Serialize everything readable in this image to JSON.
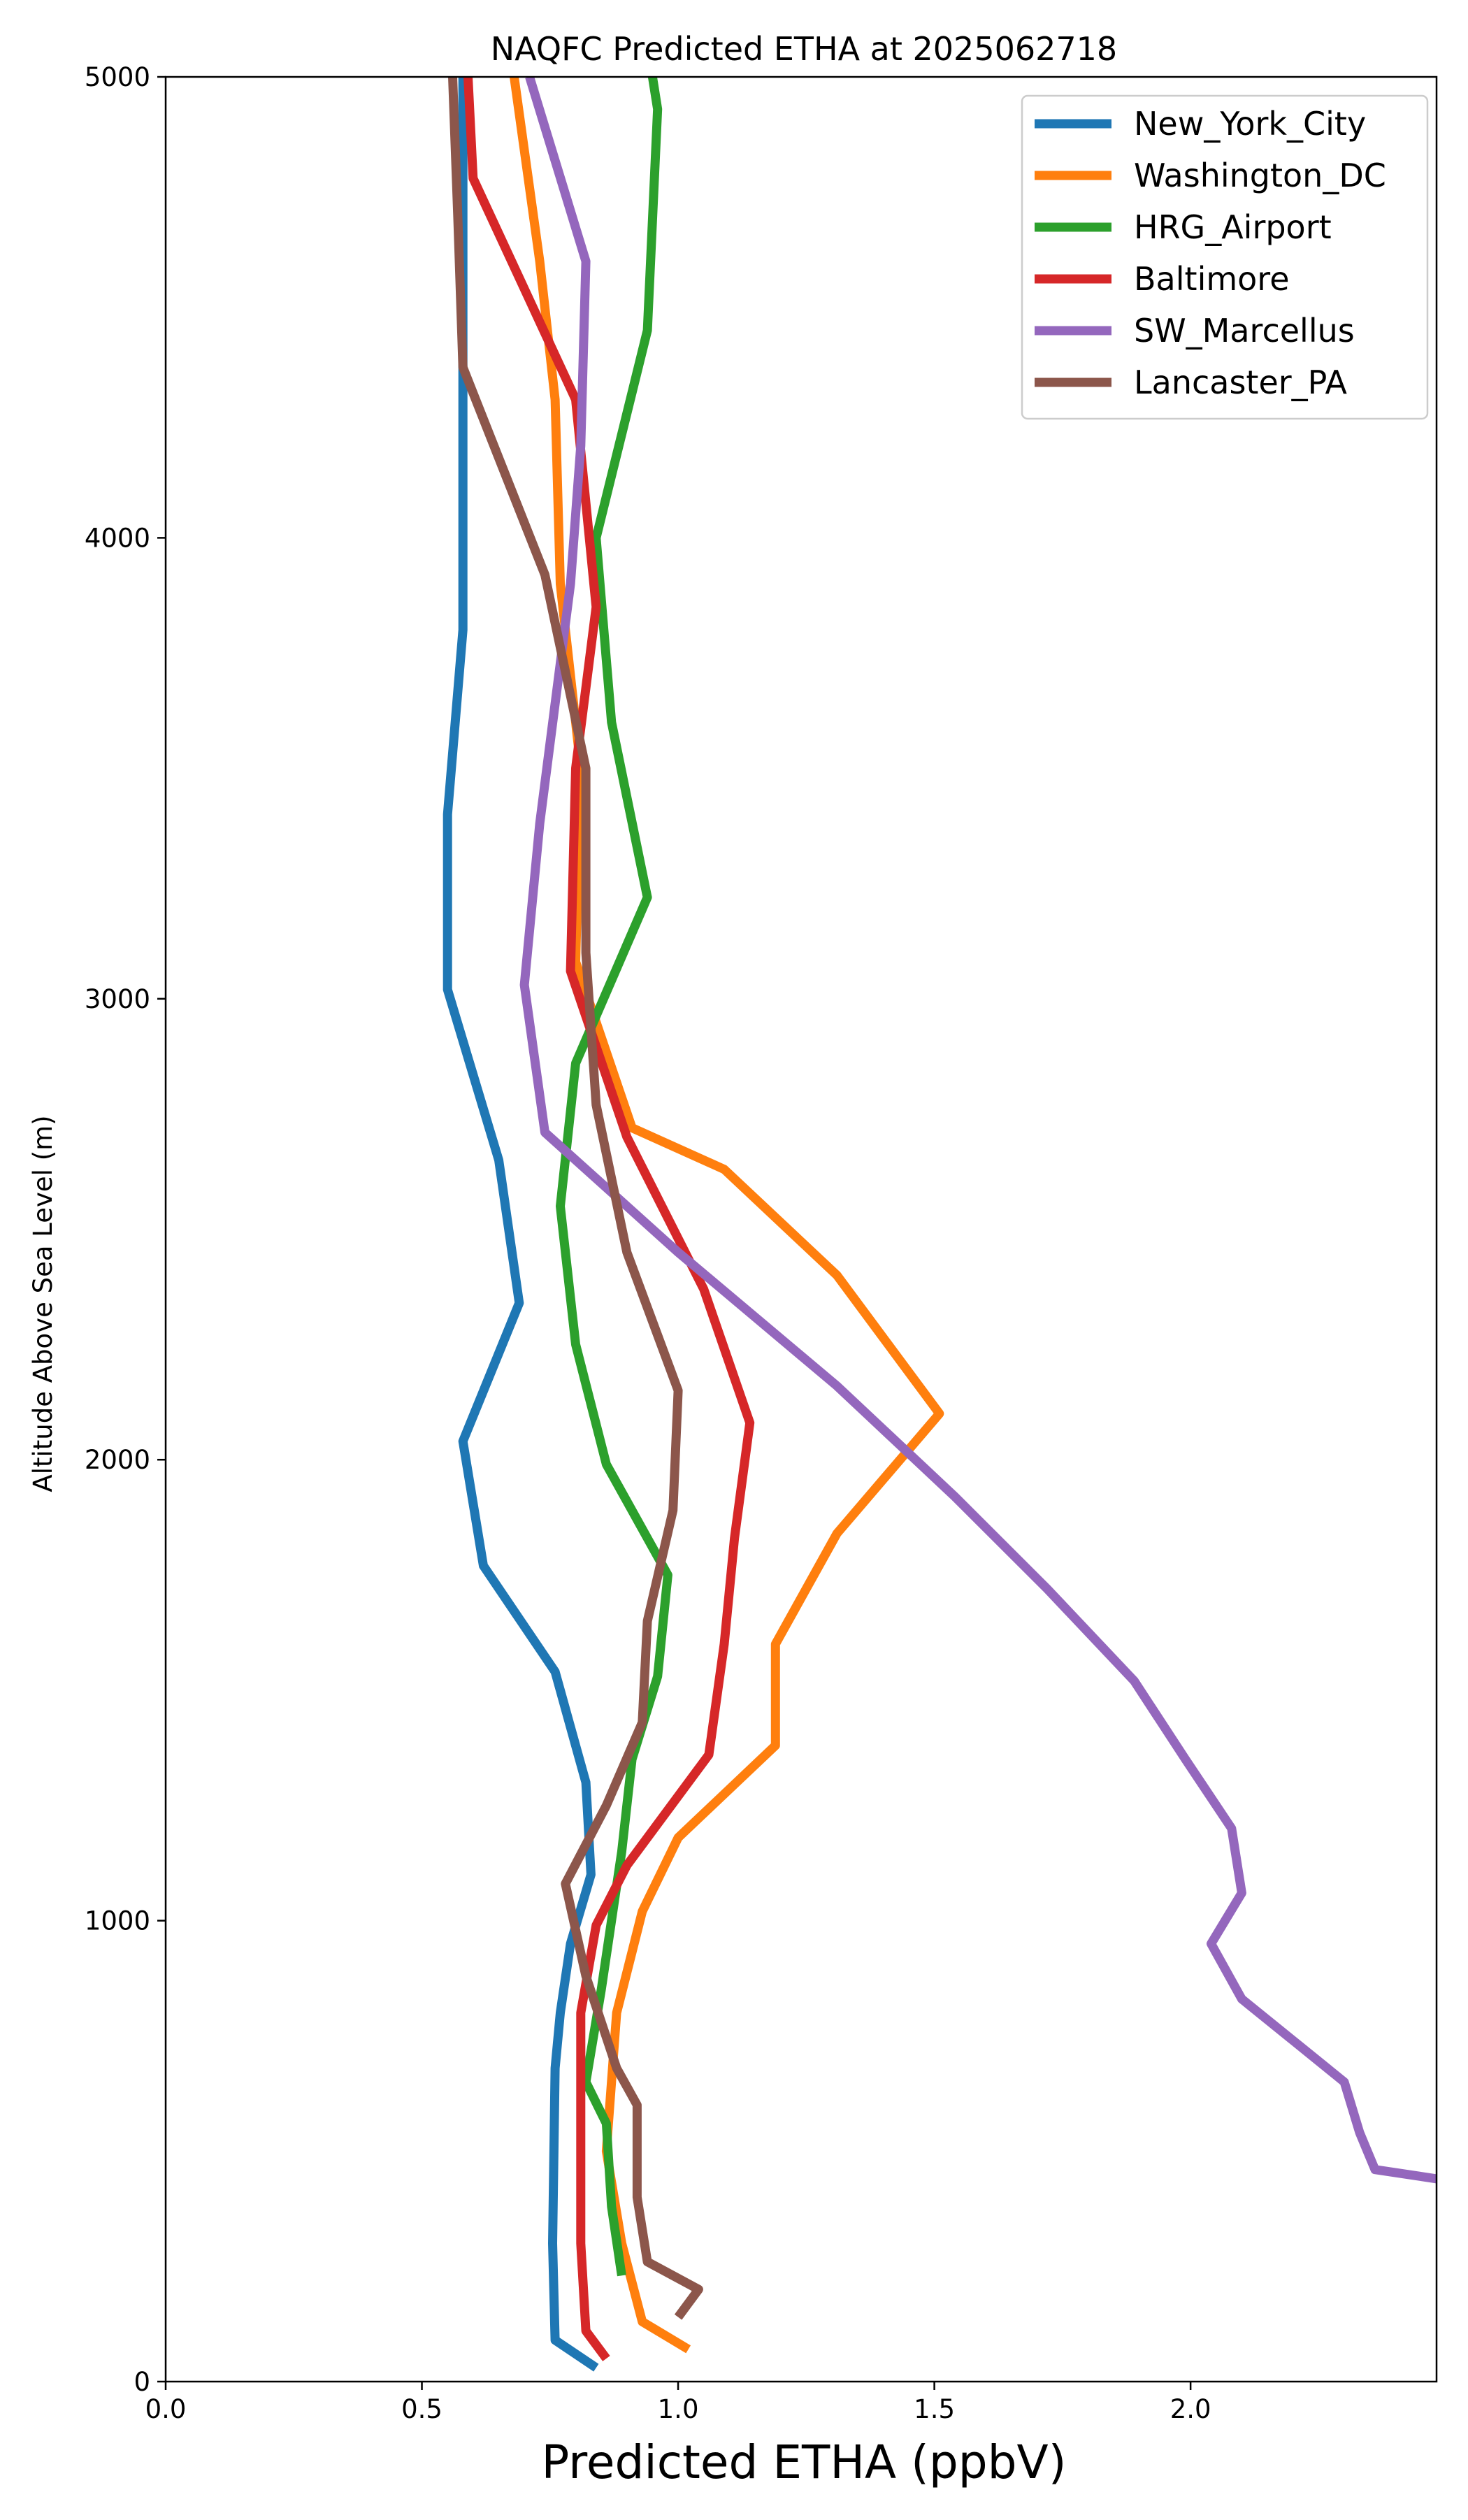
{
  "chart_data": {
    "type": "line",
    "title": "NAQFC Predicted ETHA at 2025062718",
    "xlabel": "Predicted ETHA (ppbV)",
    "ylabel": "Altitude Above Sea Level (m)",
    "xlim": [
      0,
      2.48
    ],
    "ylim": [
      0,
      5000
    ],
    "xticks": [
      0.0,
      0.5,
      1.0,
      1.5,
      2.0
    ],
    "xtick_labels": [
      "0.0",
      "0.5",
      "1.0",
      "1.5",
      "2.0"
    ],
    "yticks": [
      0,
      1000,
      2000,
      3000,
      4000,
      5000
    ],
    "ytick_labels": [
      "0",
      "1000",
      "2000",
      "3000",
      "4000",
      "5000"
    ],
    "grid": false,
    "legend_position": "top-right",
    "series": [
      {
        "name": "New_York_City",
        "color": "#1f77b4",
        "points": [
          [
            0.84,
            30
          ],
          [
            0.76,
            90
          ],
          [
            0.755,
            300
          ],
          [
            0.76,
            680
          ],
          [
            0.77,
            800
          ],
          [
            0.79,
            950
          ],
          [
            0.83,
            1100
          ],
          [
            0.82,
            1300
          ],
          [
            0.76,
            1540
          ],
          [
            0.62,
            1770
          ],
          [
            0.58,
            2040
          ],
          [
            0.69,
            2340
          ],
          [
            0.65,
            2650
          ],
          [
            0.55,
            3020
          ],
          [
            0.55,
            3400
          ],
          [
            0.58,
            3800
          ],
          [
            0.58,
            4400
          ],
          [
            0.58,
            5000
          ]
        ]
      },
      {
        "name": "Washington_DC",
        "color": "#ff7f0e",
        "points": [
          [
            1.02,
            70
          ],
          [
            0.93,
            130
          ],
          [
            0.89,
            300
          ],
          [
            0.86,
            500
          ],
          [
            0.88,
            800
          ],
          [
            0.93,
            1020
          ],
          [
            1.0,
            1180
          ],
          [
            1.19,
            1380
          ],
          [
            1.19,
            1600
          ],
          [
            1.31,
            1840
          ],
          [
            1.51,
            2100
          ],
          [
            1.31,
            2400
          ],
          [
            1.09,
            2630
          ],
          [
            0.91,
            2720
          ],
          [
            0.8,
            3080
          ],
          [
            0.81,
            3500
          ],
          [
            0.77,
            3900
          ],
          [
            0.76,
            4300
          ],
          [
            0.73,
            4600
          ],
          [
            0.68,
            5000
          ]
        ]
      },
      {
        "name": "HRG_Airport",
        "color": "#2ca02c",
        "points": [
          [
            0.89,
            230
          ],
          [
            0.87,
            380
          ],
          [
            0.86,
            560
          ],
          [
            0.82,
            650
          ],
          [
            0.85,
            850
          ],
          [
            0.89,
            1150
          ],
          [
            0.91,
            1350
          ],
          [
            0.96,
            1530
          ],
          [
            0.98,
            1750
          ],
          [
            0.86,
            1990
          ],
          [
            0.8,
            2250
          ],
          [
            0.77,
            2550
          ],
          [
            0.8,
            2860
          ],
          [
            0.94,
            3220
          ],
          [
            0.87,
            3600
          ],
          [
            0.84,
            4000
          ],
          [
            0.94,
            4450
          ],
          [
            0.96,
            4930
          ],
          [
            0.95,
            5000
          ]
        ]
      },
      {
        "name": "Baltimore",
        "color": "#d62728",
        "points": [
          [
            0.86,
            50
          ],
          [
            0.82,
            110
          ],
          [
            0.81,
            300
          ],
          [
            0.81,
            800
          ],
          [
            0.84,
            990
          ],
          [
            0.9,
            1120
          ],
          [
            1.06,
            1360
          ],
          [
            1.09,
            1600
          ],
          [
            1.11,
            1830
          ],
          [
            1.14,
            2080
          ],
          [
            1.05,
            2370
          ],
          [
            0.9,
            2700
          ],
          [
            0.79,
            3060
          ],
          [
            0.8,
            3500
          ],
          [
            0.84,
            3850
          ],
          [
            0.8,
            4300
          ],
          [
            0.6,
            4780
          ],
          [
            0.59,
            5000
          ]
        ]
      },
      {
        "name": "SW_Marcellus",
        "color": "#9467bd",
        "points": [
          [
            2.48,
            440
          ],
          [
            2.36,
            460
          ],
          [
            2.33,
            540
          ],
          [
            2.3,
            650
          ],
          [
            2.2,
            740
          ],
          [
            2.1,
            830
          ],
          [
            2.04,
            950
          ],
          [
            2.1,
            1060
          ],
          [
            2.08,
            1200
          ],
          [
            1.99,
            1350
          ],
          [
            1.89,
            1520
          ],
          [
            1.72,
            1720
          ],
          [
            1.54,
            1920
          ],
          [
            1.31,
            2160
          ],
          [
            1.0,
            2450
          ],
          [
            0.74,
            2710
          ],
          [
            0.7,
            3030
          ],
          [
            0.73,
            3380
          ],
          [
            0.79,
            3900
          ],
          [
            0.81,
            4200
          ],
          [
            0.82,
            4600
          ],
          [
            0.71,
            5000
          ]
        ]
      },
      {
        "name": "Lancaster_PA",
        "color": "#8c564b",
        "points": [
          [
            1.0,
            140
          ],
          [
            1.04,
            200
          ],
          [
            0.94,
            260
          ],
          [
            0.92,
            400
          ],
          [
            0.92,
            600
          ],
          [
            0.88,
            680
          ],
          [
            0.82,
            880
          ],
          [
            0.78,
            1080
          ],
          [
            0.86,
            1250
          ],
          [
            0.93,
            1430
          ],
          [
            0.94,
            1650
          ],
          [
            0.99,
            1890
          ],
          [
            1.0,
            2150
          ],
          [
            0.9,
            2450
          ],
          [
            0.84,
            2770
          ],
          [
            0.82,
            3100
          ],
          [
            0.82,
            3500
          ],
          [
            0.74,
            3920
          ],
          [
            0.58,
            4370
          ],
          [
            0.57,
            4700
          ],
          [
            0.56,
            5000
          ]
        ]
      }
    ]
  }
}
